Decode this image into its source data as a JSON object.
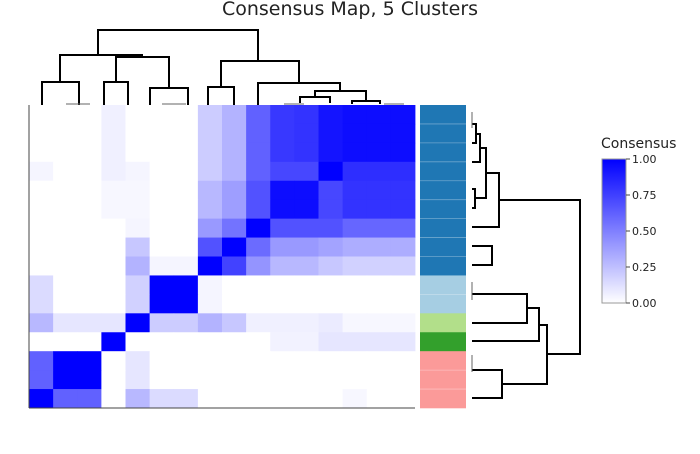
{
  "chart_data": {
    "type": "heatmap",
    "title": "Consensus Map, 5 Clusters",
    "colorscale": {
      "low": "#ffffff",
      "high": "#0000ff"
    },
    "colorbar": {
      "title": "Consensus",
      "range": [
        0,
        1
      ],
      "ticks": [
        {
          "value": 0.0,
          "label": "0.00"
        },
        {
          "value": 0.25,
          "label": "0.25"
        },
        {
          "value": 0.5,
          "label": "0.50"
        },
        {
          "value": 0.75,
          "label": "0.75"
        },
        {
          "value": 1.0,
          "label": "1.00"
        }
      ]
    },
    "matrix": [
      [
        0,
        0,
        0,
        0.06,
        0,
        0,
        0,
        0.2,
        0.3,
        0.62,
        0.78,
        0.8,
        0.92,
        0.95,
        0.95,
        0.95
      ],
      [
        0,
        0,
        0,
        0.06,
        0,
        0,
        0,
        0.2,
        0.3,
        0.62,
        0.78,
        0.8,
        0.92,
        0.95,
        0.95,
        0.95
      ],
      [
        0,
        0,
        0,
        0.06,
        0,
        0,
        0,
        0.2,
        0.3,
        0.62,
        0.78,
        0.8,
        0.92,
        0.95,
        0.95,
        0.95
      ],
      [
        0.04,
        0,
        0,
        0.06,
        0.04,
        0,
        0,
        0.2,
        0.3,
        0.62,
        0.72,
        0.72,
        1.0,
        0.82,
        0.82,
        0.82
      ],
      [
        0,
        0,
        0,
        0.03,
        0.03,
        0,
        0,
        0.28,
        0.38,
        0.68,
        0.95,
        0.95,
        0.72,
        0.8,
        0.8,
        0.8
      ],
      [
        0,
        0,
        0,
        0.03,
        0.03,
        0,
        0,
        0.28,
        0.38,
        0.68,
        0.95,
        0.95,
        0.72,
        0.8,
        0.8,
        0.8
      ],
      [
        0,
        0,
        0,
        0,
        0.04,
        0,
        0,
        0.4,
        0.55,
        1.0,
        0.68,
        0.68,
        0.68,
        0.6,
        0.6,
        0.6
      ],
      [
        0,
        0,
        0,
        0,
        0.22,
        0,
        0,
        0.68,
        1.0,
        0.58,
        0.4,
        0.4,
        0.36,
        0.32,
        0.32,
        0.32
      ],
      [
        0,
        0,
        0,
        0,
        0.3,
        0.04,
        0.04,
        1.0,
        0.74,
        0.42,
        0.28,
        0.28,
        0.22,
        0.18,
        0.18,
        0.18
      ],
      [
        0.14,
        0,
        0,
        0,
        0.18,
        1.0,
        1.0,
        0.04,
        0,
        0,
        0,
        0,
        0,
        0,
        0,
        0
      ],
      [
        0.14,
        0,
        0,
        0,
        0.18,
        1.0,
        1.0,
        0.04,
        0,
        0,
        0,
        0,
        0,
        0,
        0,
        0
      ],
      [
        0.28,
        0.1,
        0.1,
        0.1,
        1.0,
        0.2,
        0.2,
        0.3,
        0.22,
        0.06,
        0.06,
        0.06,
        0.08,
        0.03,
        0.03,
        0.03
      ],
      [
        0,
        0,
        0,
        1.0,
        0,
        0,
        0,
        0,
        0,
        0,
        0.05,
        0.05,
        0.1,
        0.1,
        0.1,
        0.1
      ],
      [
        0.62,
        1.0,
        1.0,
        0,
        0.1,
        0,
        0,
        0,
        0,
        0,
        0,
        0,
        0,
        0,
        0,
        0
      ],
      [
        0.62,
        1.0,
        1.0,
        0,
        0.1,
        0,
        0,
        0,
        0,
        0,
        0,
        0,
        0,
        0,
        0,
        0
      ],
      [
        1.0,
        0.62,
        0.62,
        0,
        0.28,
        0.14,
        0.14,
        0,
        0,
        0,
        0,
        0,
        0,
        0.03,
        0,
        0
      ]
    ],
    "cluster_assignment_colors": [
      "#1f77b4",
      "#1f77b4",
      "#1f77b4",
      "#1f77b4",
      "#1f77b4",
      "#1f77b4",
      "#1f77b4",
      "#1f77b4",
      "#1f77b4",
      "#a6cee3",
      "#a6cee3",
      "#b2df8a",
      "#33a02c",
      "#fb9a99",
      "#fb9a99",
      "#fb9a99"
    ]
  }
}
